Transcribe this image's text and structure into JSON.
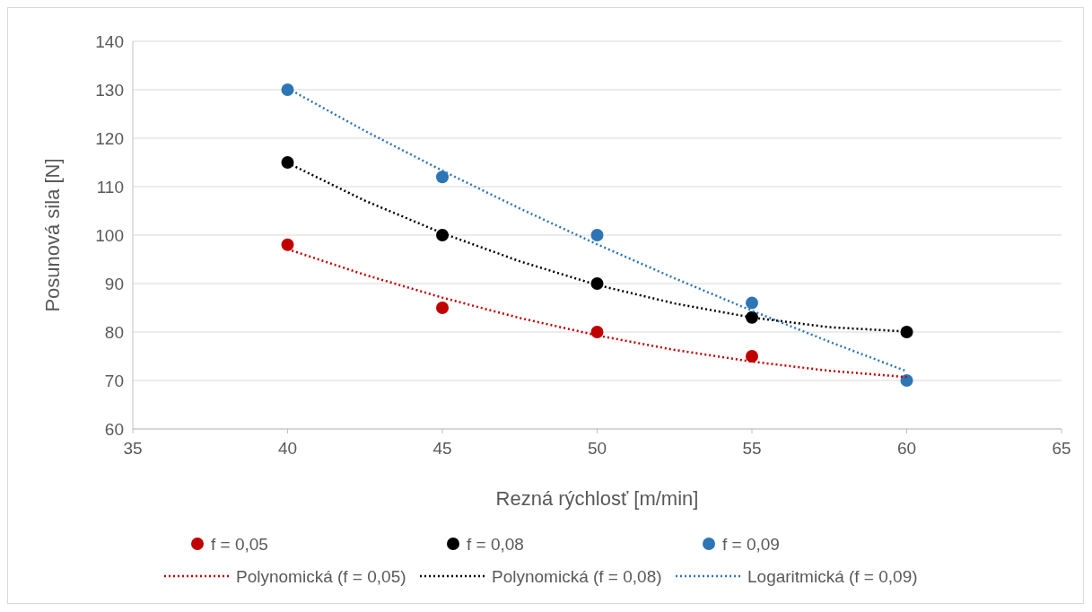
{
  "chart_data": {
    "type": "scatter",
    "xlabel": "Rezná rýchlosť [m/min]",
    "ylabel": "Posunová sila [N]",
    "xlim": [
      35,
      65
    ],
    "xticks": [
      35,
      40,
      45,
      50,
      55,
      60,
      65
    ],
    "ylim": [
      60,
      140
    ],
    "yticks": [
      60,
      70,
      80,
      90,
      100,
      110,
      120,
      130,
      140
    ],
    "grid": "y",
    "legend": "bottom",
    "marker": "circle",
    "x": [
      40,
      45,
      50,
      55,
      60
    ],
    "series": [
      {
        "name": "f = 0,05",
        "color": "#c00000",
        "values": [
          98,
          85,
          80,
          75,
          null
        ]
      },
      {
        "name": "f = 0,08",
        "color": "#000000",
        "values": [
          115,
          100,
          90,
          83,
          80
        ]
      },
      {
        "name": "f = 0,09",
        "color": "#2e75b6",
        "values": [
          130,
          112,
          100,
          86,
          70
        ]
      },
      {
        "name": "Polynomická (f = 0,05)",
        "type": "line",
        "marker": "none",
        "line_style": "dotted",
        "color": "#c00000",
        "x": [
          40,
          42.5,
          45,
          47.5,
          50,
          52.5,
          55,
          57.5,
          60
        ],
        "values": [
          97.1,
          91.8,
          87.1,
          82.9,
          79.3,
          76.3,
          73.9,
          72,
          70.7
        ]
      },
      {
        "name": "Polynomická (f = 0,08)",
        "type": "line",
        "marker": "none",
        "line_style": "dotted",
        "color": "#000000",
        "x": [
          40,
          42.5,
          45,
          47.5,
          50,
          52.5,
          55,
          57.5,
          60
        ],
        "values": [
          114.9,
          107.1,
          100.4,
          94.6,
          89.7,
          85.9,
          83,
          81,
          80.1
        ]
      },
      {
        "name": "Logaritmická (f = 0,09)",
        "type": "line",
        "marker": "none",
        "line_style": "dotted",
        "color": "#2e75b6",
        "x": [
          40,
          42.5,
          45,
          47.5,
          50,
          52.5,
          55,
          57.5,
          60
        ],
        "values": [
          130.3,
          121.5,
          113.3,
          105.5,
          98.1,
          91.1,
          84.4,
          78,
          71.9
        ]
      }
    ]
  }
}
